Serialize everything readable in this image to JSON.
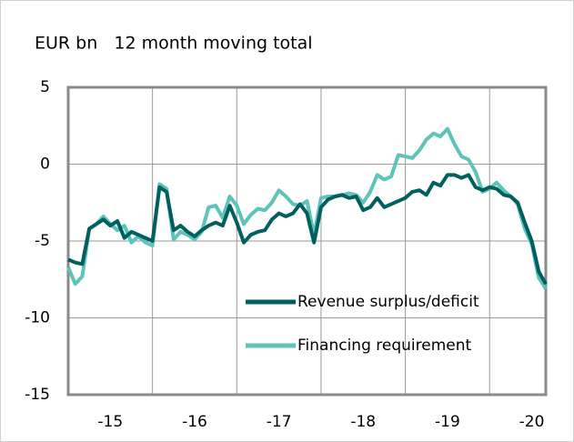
{
  "chart_data": {
    "type": "line",
    "title": "EUR bn   12 month moving total",
    "x": [
      0,
      1,
      2,
      3,
      4,
      5,
      6,
      7,
      8,
      9,
      10,
      11,
      12,
      13,
      14,
      15,
      16,
      17,
      18,
      19,
      20,
      21,
      22,
      23,
      24,
      25,
      26,
      27,
      28,
      29,
      30,
      31,
      32,
      33,
      34,
      35,
      36,
      37,
      38,
      39,
      40,
      41,
      42,
      43,
      44,
      45,
      46,
      47,
      48,
      49,
      50,
      51,
      52,
      53,
      54,
      55,
      56,
      57,
      58,
      59,
      60,
      61,
      62,
      63,
      64,
      65,
      66,
      67,
      68
    ],
    "xlim": [
      0,
      68
    ],
    "xticks": [
      {
        "value": 6,
        "label": "-15"
      },
      {
        "value": 18,
        "label": "-16"
      },
      {
        "value": 30,
        "label": "-17"
      },
      {
        "value": 42,
        "label": "-18"
      },
      {
        "value": 54,
        "label": "-19"
      },
      {
        "value": 66,
        "label": "-20"
      }
    ],
    "xgrid": [
      12,
      24,
      36,
      48,
      60
    ],
    "ylim": [
      -15,
      5
    ],
    "yticks": [
      -15,
      -10,
      -5,
      0,
      5
    ],
    "grid": true,
    "legend": "lower right",
    "series": [
      {
        "name": "Revenue surplus/deficit",
        "color": "#005f5f",
        "values": [
          -6.2,
          -6.4,
          -6.5,
          -4.2,
          -3.9,
          -3.6,
          -4.0,
          -3.7,
          -4.8,
          -4.4,
          -4.6,
          -4.8,
          -5.0,
          -1.5,
          -1.8,
          -4.3,
          -4.0,
          -4.4,
          -4.7,
          -4.3,
          -4.0,
          -3.8,
          -4.0,
          -2.7,
          -3.8,
          -5.1,
          -4.6,
          -4.4,
          -4.3,
          -3.6,
          -3.2,
          -3.4,
          -3.2,
          -2.6,
          -3.2,
          -5.1,
          -2.8,
          -2.3,
          -2.1,
          -2.0,
          -2.2,
          -2.1,
          -3.0,
          -2.8,
          -2.2,
          -2.8,
          -2.6,
          -2.4,
          -2.2,
          -1.8,
          -1.7,
          -2.0,
          -1.2,
          -1.4,
          -0.7,
          -0.7,
          -0.9,
          -0.7,
          -1.5,
          -1.7,
          -1.5,
          -1.6,
          -2.0,
          -2.1,
          -2.5,
          -3.8,
          -5.0,
          -7.0,
          -7.8
        ]
      },
      {
        "name": "Financing requirement",
        "color": "#5ec3b9",
        "values": [
          -6.7,
          -7.8,
          -7.3,
          -4.2,
          -3.9,
          -3.4,
          -3.9,
          -4.3,
          -4.0,
          -5.1,
          -4.7,
          -5.1,
          -5.3,
          -1.3,
          -1.6,
          -4.9,
          -4.4,
          -4.6,
          -4.9,
          -4.4,
          -2.8,
          -2.7,
          -3.5,
          -2.1,
          -2.7,
          -3.9,
          -3.3,
          -2.9,
          -3.0,
          -2.5,
          -1.7,
          -2.1,
          -2.6,
          -2.7,
          -2.4,
          -4.6,
          -2.2,
          -2.1,
          -2.1,
          -2.0,
          -1.9,
          -2.0,
          -2.5,
          -1.8,
          -0.7,
          -1.0,
          -0.8,
          0.6,
          0.5,
          0.4,
          0.9,
          1.6,
          2.0,
          1.8,
          2.3,
          1.3,
          0.5,
          0.3,
          -0.5,
          -1.8,
          -1.6,
          -1.2,
          -1.7,
          -2.1,
          -2.6,
          -4.2,
          -5.2,
          -7.4,
          -8.1
        ]
      }
    ]
  }
}
